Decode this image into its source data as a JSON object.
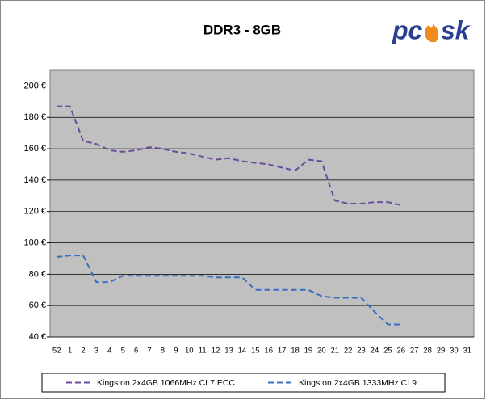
{
  "chart_data": {
    "type": "line",
    "title": "DDR3 - 8GB",
    "logo": {
      "left": "pc",
      "right": "sk"
    },
    "categories": [
      "52",
      "1",
      "2",
      "3",
      "4",
      "5",
      "6",
      "7",
      "8",
      "9",
      "10",
      "11",
      "12",
      "13",
      "14",
      "15",
      "16",
      "17",
      "18",
      "19",
      "20",
      "21",
      "22",
      "23",
      "24",
      "25",
      "26",
      "27",
      "28",
      "29",
      "30",
      "31"
    ],
    "series": [
      {
        "name": "Kingston 2x4GB 1066MHz CL7 ECC",
        "color": "#6a4c9c",
        "values": [
          187,
          187,
          165,
          163,
          159,
          158,
          159,
          161,
          160,
          158,
          157,
          155,
          153,
          154,
          152,
          151,
          150,
          148,
          146,
          153,
          152,
          127,
          125,
          125,
          126,
          126,
          124,
          null,
          null,
          null,
          null,
          null
        ]
      },
      {
        "name": "Kingston 2x4GB 1333MHz CL9",
        "color": "#3a6fbf",
        "values": [
          91,
          92,
          92,
          75,
          75,
          79,
          79,
          79,
          79,
          79,
          79,
          79,
          78,
          78,
          78,
          70,
          70,
          70,
          70,
          70,
          66,
          65,
          65,
          65,
          56,
          48,
          48,
          null,
          null,
          null,
          null,
          null
        ]
      }
    ],
    "ylim": [
      40,
      210
    ],
    "yticks": [
      {
        "value": 40,
        "label": "40 €"
      },
      {
        "value": 60,
        "label": "60 €"
      },
      {
        "value": 80,
        "label": "80 €"
      },
      {
        "value": 100,
        "label": "100 €"
      },
      {
        "value": 120,
        "label": "120 €"
      },
      {
        "value": 140,
        "label": "140 €"
      },
      {
        "value": 160,
        "label": "160 €"
      },
      {
        "value": 180,
        "label": "180 €"
      },
      {
        "value": 200,
        "label": "200 €"
      }
    ],
    "grid": true
  }
}
